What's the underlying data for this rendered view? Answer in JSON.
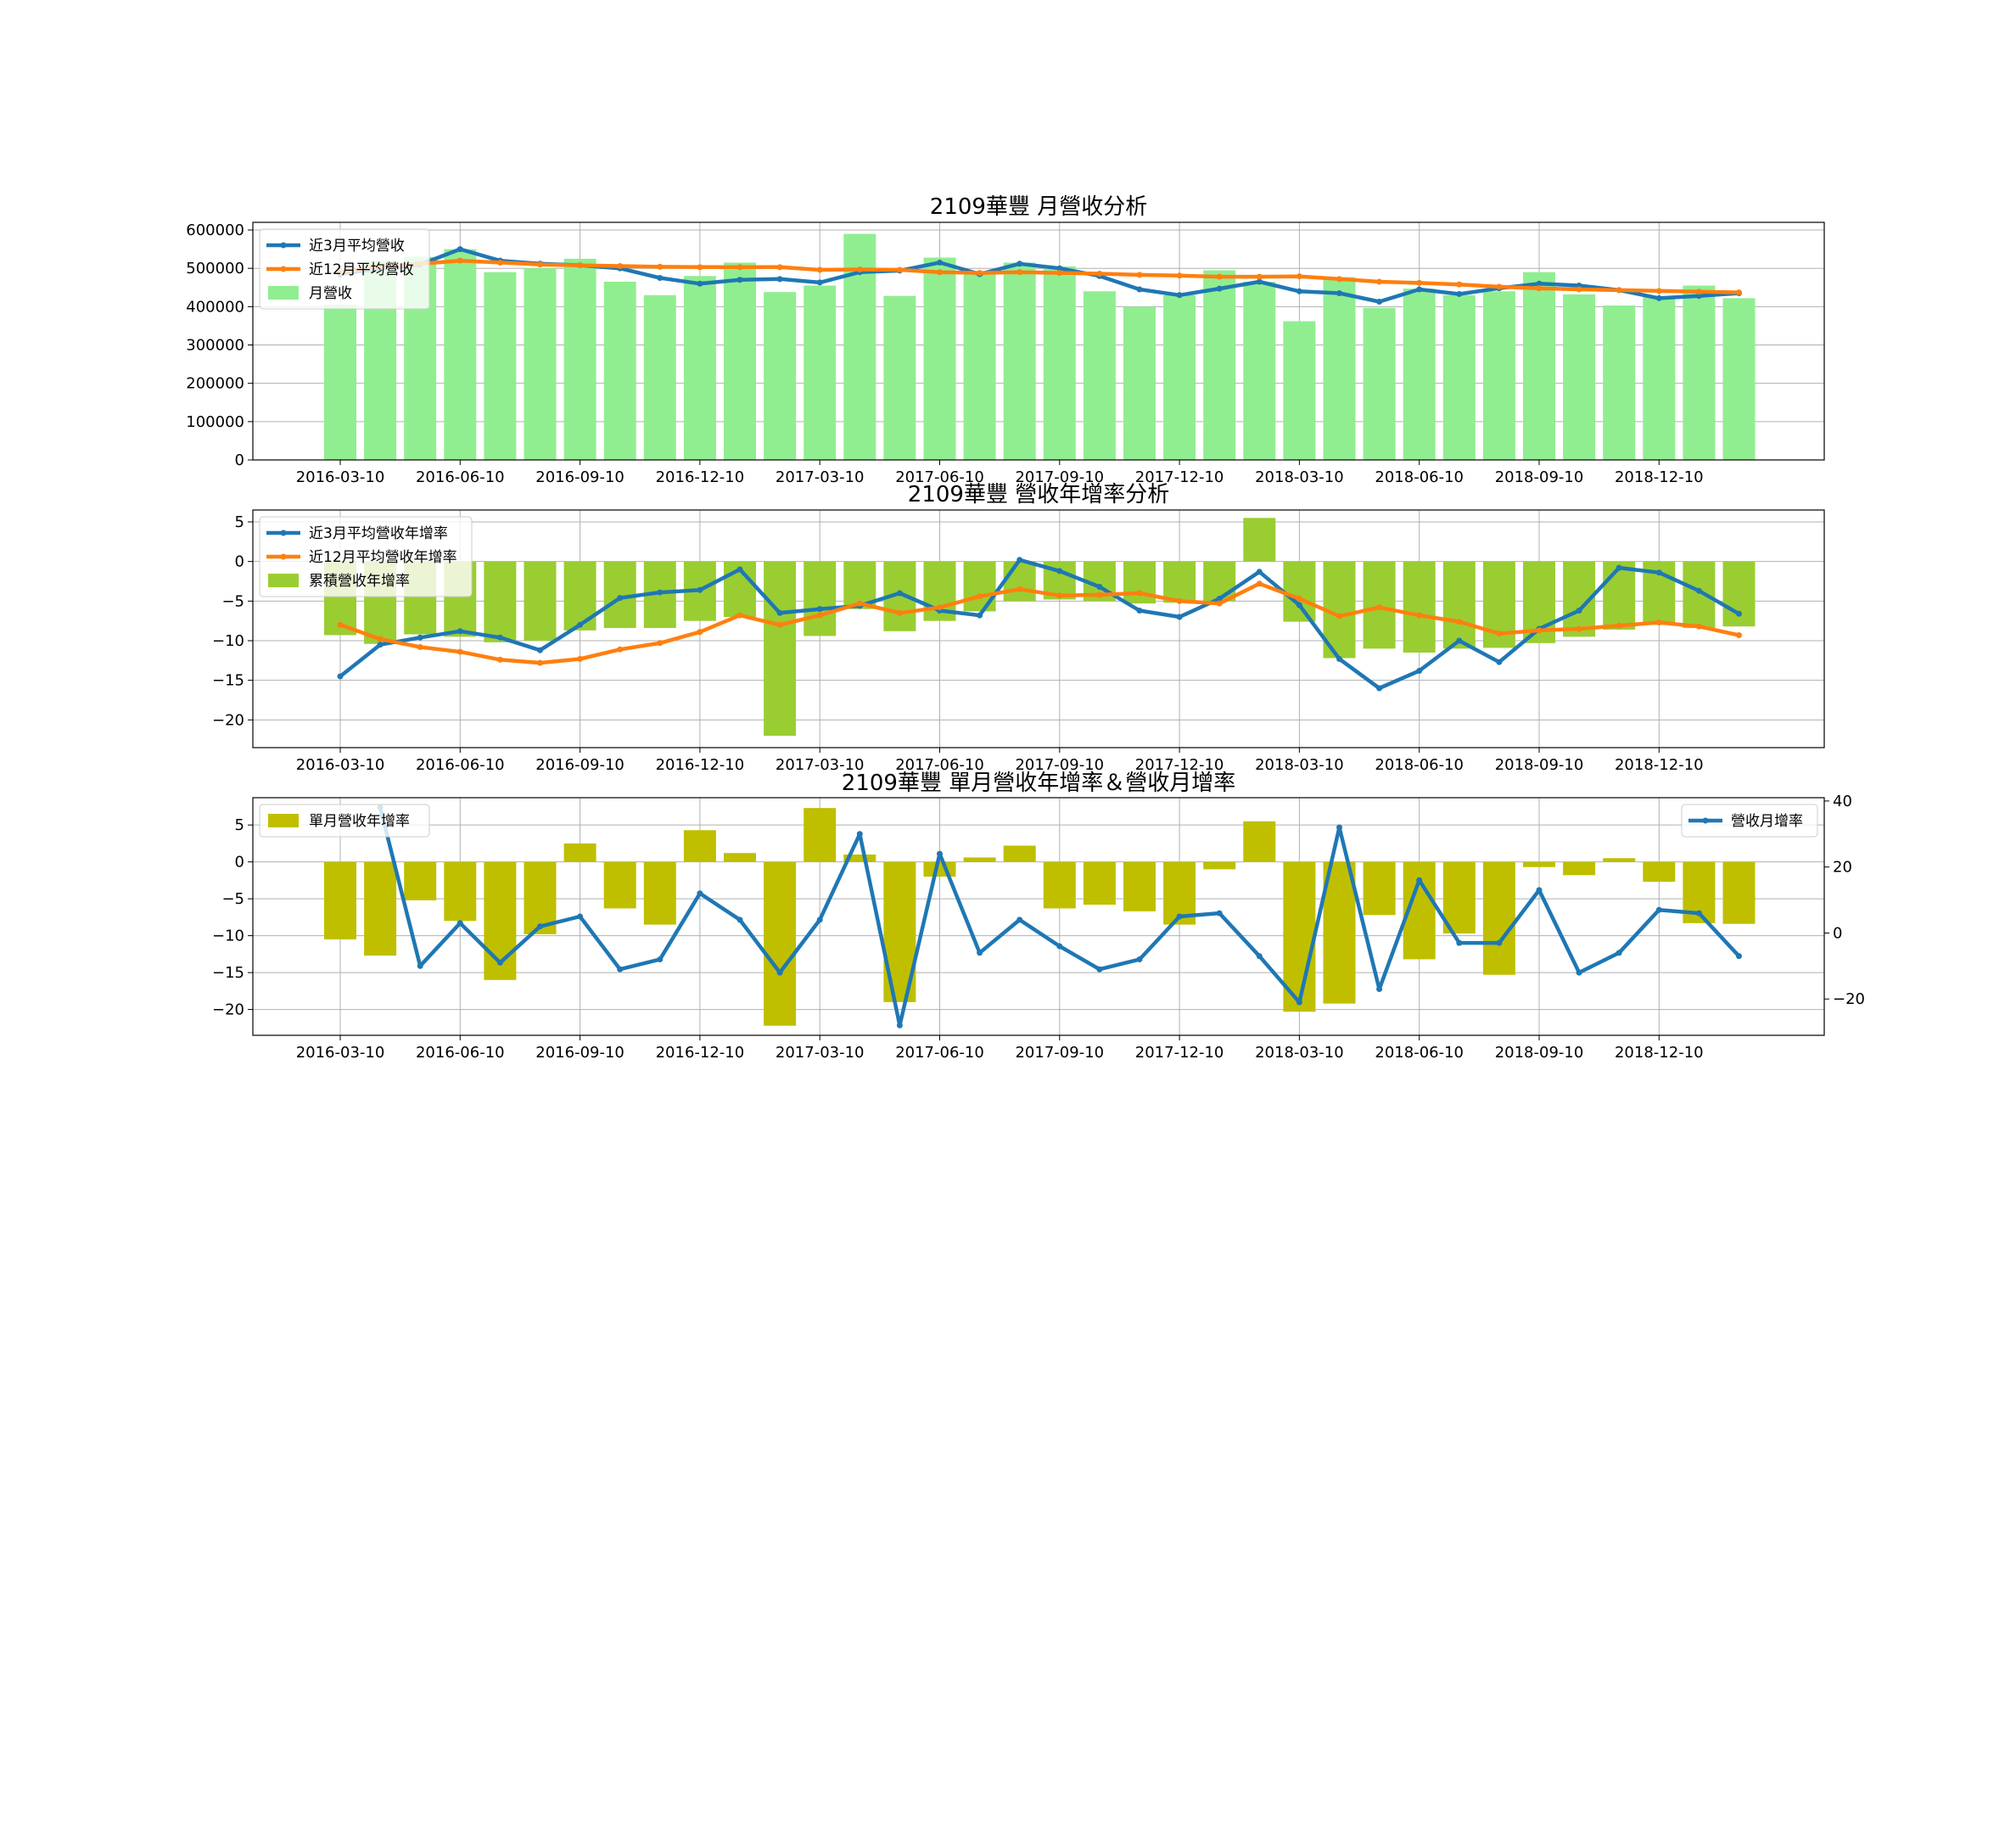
{
  "colors": {
    "blue": "#1f77b4",
    "orange": "#ff7f0e",
    "lightgreen": "#90ee90",
    "yellowgreen": "#9acd32",
    "olive": "#bfbf00",
    "grid": "#b0b0b0"
  },
  "chart_data": [
    {
      "type": "bar",
      "title": "2109華豐 月營收分析",
      "x_tick_labels": [
        "2016-03-10",
        "2016-06-10",
        "2016-09-10",
        "2016-12-10",
        "2017-03-10",
        "2017-06-10",
        "2017-09-10",
        "2017-12-10",
        "2018-03-10",
        "2018-06-10",
        "2018-09-10",
        "2018-12-10"
      ],
      "ylim": [
        0,
        620000
      ],
      "y_ticks": [
        0,
        100000,
        200000,
        300000,
        400000,
        500000,
        600000
      ],
      "y_tick_labels": [
        "0",
        "100000",
        "200000",
        "300000",
        "400000",
        "500000",
        "600000"
      ],
      "grid": true,
      "legend_position": "top-left",
      "bars": {
        "name": "月營收",
        "values": [
          405000,
          520000,
          530000,
          550000,
          490000,
          500000,
          525000,
          465000,
          430000,
          480000,
          515000,
          438000,
          455000,
          590000,
          428000,
          528000,
          490000,
          515000,
          505000,
          440000,
          400000,
          430000,
          495000,
          465000,
          362000,
          477000,
          397000,
          447000,
          430000,
          440000,
          490000,
          432000,
          403000,
          425000,
          455000,
          422000
        ]
      },
      "series": [
        {
          "name": "近3月平均營收",
          "values": [
            485000,
            500000,
            510000,
            550000,
            520000,
            512000,
            508000,
            500000,
            475000,
            460000,
            470000,
            472000,
            463000,
            490000,
            494000,
            515000,
            485000,
            512000,
            500000,
            480000,
            445000,
            430000,
            447000,
            465000,
            440000,
            435000,
            413000,
            445000,
            433000,
            448000,
            460000,
            455000,
            443000,
            422000,
            428000,
            435000
          ]
        },
        {
          "name": "近12月平均營收",
          "values": [
            490000,
            505000,
            512000,
            520000,
            515000,
            510000,
            508000,
            506000,
            504000,
            503000,
            503000,
            503000,
            496000,
            497000,
            496000,
            490000,
            488000,
            490000,
            488000,
            486000,
            483000,
            481000,
            478000,
            478000,
            479000,
            472000,
            465000,
            462000,
            458000,
            452000,
            448000,
            445000,
            443000,
            441000,
            439000,
            437000
          ]
        }
      ]
    },
    {
      "type": "bar",
      "title": "2109華豐 營收年增率分析",
      "x_tick_labels": [
        "2016-03-10",
        "2016-06-10",
        "2016-09-10",
        "2016-12-10",
        "2017-03-10",
        "2017-06-10",
        "2017-09-10",
        "2017-12-10",
        "2018-03-10",
        "2018-06-10",
        "2018-09-10",
        "2018-12-10"
      ],
      "ylim": [
        -23.5,
        6.5
      ],
      "y_ticks": [
        5,
        0,
        -5,
        -10,
        -15,
        -20
      ],
      "y_tick_labels": [
        "5",
        "0",
        "−5",
        "−10",
        "−15",
        "−20"
      ],
      "grid": true,
      "legend_position": "top-left",
      "bars": {
        "name": "累積營收年增率",
        "values": [
          -9.3,
          -10.4,
          -9.2,
          -9.5,
          -10.2,
          -10.0,
          -8.7,
          -8.4,
          -8.4,
          -7.5,
          -7.0,
          -22.0,
          -9.4,
          -6.0,
          -8.8,
          -7.5,
          -6.3,
          -5.0,
          -4.8,
          -5.0,
          -5.3,
          -5.2,
          -5.0,
          5.5,
          -7.6,
          -12.2,
          -11.0,
          -11.5,
          -11.0,
          -10.9,
          -10.3,
          -9.5,
          -8.6,
          -8.0,
          -8.4,
          -8.2
        ]
      },
      "series": [
        {
          "name": "近3月平均營收年增率",
          "values": [
            -14.5,
            -10.5,
            -9.6,
            -8.8,
            -9.6,
            -11.2,
            -8.0,
            -4.6,
            -3.9,
            -3.6,
            -1.0,
            -6.5,
            -6.0,
            -5.6,
            -4.0,
            -6.2,
            -6.8,
            0.2,
            -1.2,
            -3.2,
            -6.2,
            -7.0,
            -4.7,
            -1.3,
            -5.5,
            -12.3,
            -16.0,
            -13.8,
            -10.0,
            -12.7,
            -8.5,
            -6.2,
            -0.8,
            -1.4,
            -3.7,
            -6.6
          ]
        },
        {
          "name": "近12月平均營收年增率",
          "values": [
            -8.0,
            -9.8,
            -10.8,
            -11.4,
            -12.4,
            -12.8,
            -12.3,
            -11.1,
            -10.3,
            -8.9,
            -6.8,
            -8.0,
            -6.8,
            -5.3,
            -6.5,
            -5.8,
            -4.4,
            -3.5,
            -4.3,
            -4.2,
            -4.0,
            -5.0,
            -5.3,
            -2.8,
            -4.7,
            -6.9,
            -5.8,
            -6.8,
            -7.6,
            -9.1,
            -8.7,
            -8.5,
            -8.1,
            -7.7,
            -8.2,
            -9.3
          ]
        }
      ]
    },
    {
      "type": "bar",
      "title": "2109華豐 單月營收年增率＆營收月增率",
      "x_tick_labels": [
        "2016-03-10",
        "2016-06-10",
        "2016-09-10",
        "2016-12-10",
        "2017-03-10",
        "2017-06-10",
        "2017-09-10",
        "2017-12-10",
        "2018-03-10",
        "2018-06-10",
        "2018-09-10",
        "2018-12-10"
      ],
      "ylim": [
        -23.5,
        8.7
      ],
      "y_ticks": [
        5,
        0,
        -5,
        -10,
        -15,
        -20
      ],
      "y_tick_labels": [
        "5",
        "0",
        "−5",
        "−10",
        "−15",
        "−20"
      ],
      "y2lim": [
        -31,
        41
      ],
      "y2_ticks": [
        40,
        20,
        0,
        -20
      ],
      "y2_tick_labels": [
        "40",
        "20",
        "0",
        "−20"
      ],
      "grid": true,
      "legend_position": "top-left",
      "legend2_position": "top-right",
      "bars": {
        "name": "單月營收年增率",
        "values": [
          -10.5,
          -12.7,
          -5.2,
          -8.0,
          -16.0,
          -9.8,
          2.5,
          -6.3,
          -8.5,
          4.3,
          1.2,
          -22.2,
          7.3,
          1.0,
          -19.0,
          -2.0,
          0.6,
          2.2,
          -6.3,
          -5.8,
          -6.7,
          -8.5,
          -1.0,
          5.5,
          -20.3,
          -19.2,
          -7.2,
          -13.2,
          -9.7,
          -15.3,
          -0.7,
          -1.8,
          0.5,
          -2.7,
          -8.3,
          -8.4
        ]
      },
      "series": [
        {
          "name": "營收月增率",
          "axis": "right",
          "values": [
            null,
            38,
            -10,
            3,
            -9,
            2,
            5,
            -11,
            -8,
            12,
            4,
            -12,
            4,
            30,
            -28,
            24,
            -6,
            4,
            -4,
            -11,
            -8,
            5,
            6,
            -7,
            -21,
            32,
            -17,
            16,
            -3,
            -3,
            13,
            -12,
            -6,
            7,
            6,
            -7
          ]
        }
      ]
    }
  ]
}
